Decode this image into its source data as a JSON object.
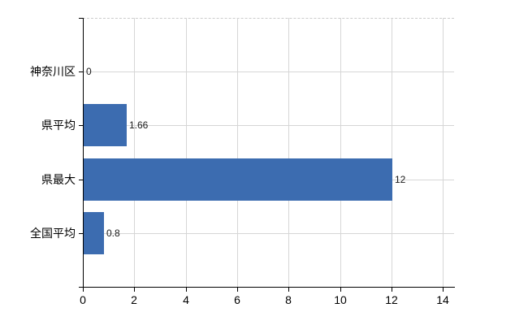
{
  "chart_data": {
    "type": "bar",
    "orientation": "horizontal",
    "title": "",
    "categories": [
      "神奈川区",
      "県平均",
      "県最大",
      "全国平均"
    ],
    "values": [
      0,
      1.66,
      12,
      0.8
    ],
    "value_labels": [
      "0",
      "1.66",
      "12",
      "0.8"
    ],
    "x_tick_labels": [
      "0",
      "2",
      "4",
      "6",
      "8",
      "10",
      "12",
      "14"
    ],
    "x_tick_values": [
      0,
      2,
      4,
      6,
      8,
      10,
      12,
      14
    ],
    "xlim": [
      0,
      14.43
    ],
    "grid": true,
    "legend": false,
    "colors": {
      "bar": "#3c6cb0",
      "gridline": "#d6d6d6",
      "plot_top_border": "#cccccc",
      "axis": "#000000",
      "category_text": "#000000",
      "tick_text": "#000000",
      "value_text": "#1a1a1a",
      "background": "#ffffff"
    }
  }
}
